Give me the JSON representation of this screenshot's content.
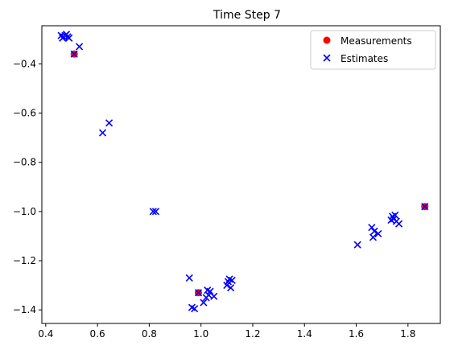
{
  "chart_data": {
    "type": "scatter",
    "title": "Time Step 7",
    "xlabel": "",
    "ylabel": "",
    "xlim": [
      0.385,
      1.925
    ],
    "ylim": [
      -1.455,
      -0.245
    ],
    "xticks": [
      0.4,
      0.6,
      0.8,
      1.0,
      1.2,
      1.4,
      1.6,
      1.8
    ],
    "xtick_labels": [
      "0.4",
      "0.6",
      "0.8",
      "1.0",
      "1.2",
      "1.4",
      "1.6",
      "1.8"
    ],
    "yticks": [
      -0.4,
      -0.6,
      -0.8,
      -1.0,
      -1.2,
      -1.4
    ],
    "ytick_labels": [
      "−0.4",
      "−0.6",
      "−0.8",
      "−1.0",
      "−1.2",
      "−1.4"
    ],
    "grid": false,
    "legend_position": "top-right",
    "series": [
      {
        "name": "Measurements",
        "marker": "circle",
        "color": "#ff0000",
        "points": [
          [
            0.51,
            -0.36
          ],
          [
            0.99,
            -1.33
          ],
          [
            1.865,
            -0.98
          ]
        ]
      },
      {
        "name": "Estimates",
        "marker": "x",
        "color": "#0000ff",
        "points": [
          [
            0.46,
            -0.285
          ],
          [
            0.47,
            -0.29
          ],
          [
            0.48,
            -0.28
          ],
          [
            0.465,
            -0.295
          ],
          [
            0.485,
            -0.29
          ],
          [
            0.475,
            -0.285
          ],
          [
            0.49,
            -0.295
          ],
          [
            0.51,
            -0.36
          ],
          [
            0.53,
            -0.33
          ],
          [
            0.62,
            -0.68
          ],
          [
            0.645,
            -0.64
          ],
          [
            0.815,
            -1.0
          ],
          [
            0.825,
            -1.0
          ],
          [
            0.955,
            -1.27
          ],
          [
            0.965,
            -1.39
          ],
          [
            0.975,
            -1.395
          ],
          [
            0.99,
            -1.33
          ],
          [
            1.01,
            -1.37
          ],
          [
            1.02,
            -1.35
          ],
          [
            1.025,
            -1.32
          ],
          [
            1.03,
            -1.34
          ],
          [
            1.035,
            -1.325
          ],
          [
            1.05,
            -1.345
          ],
          [
            1.1,
            -1.3
          ],
          [
            1.105,
            -1.285
          ],
          [
            1.11,
            -1.275
          ],
          [
            1.115,
            -1.31
          ],
          [
            1.12,
            -1.28
          ],
          [
            1.605,
            -1.135
          ],
          [
            1.66,
            -1.065
          ],
          [
            1.665,
            -1.105
          ],
          [
            1.67,
            -1.08
          ],
          [
            1.685,
            -1.09
          ],
          [
            1.735,
            -1.035
          ],
          [
            1.74,
            -1.02
          ],
          [
            1.745,
            -1.03
          ],
          [
            1.75,
            -1.015
          ],
          [
            1.755,
            -1.04
          ],
          [
            1.765,
            -1.05
          ],
          [
            1.865,
            -0.98
          ]
        ]
      }
    ]
  }
}
